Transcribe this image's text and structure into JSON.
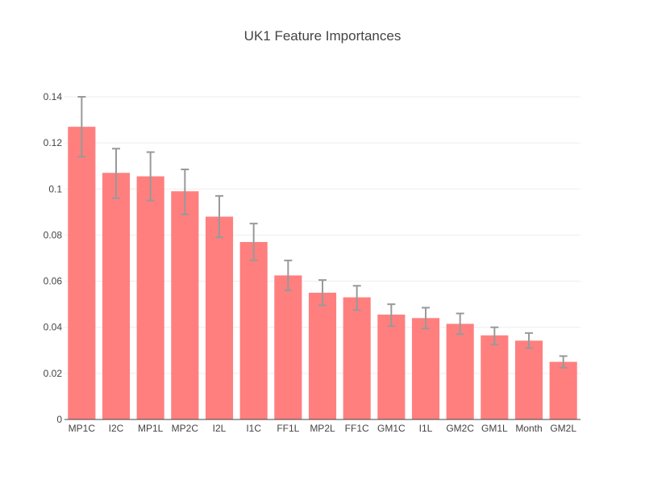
{
  "chart_data": {
    "type": "bar",
    "title": "UK1 Feature Importances",
    "xlabel": "",
    "ylabel": "",
    "categories": [
      "MP1C",
      "I2C",
      "MP1L",
      "MP2C",
      "I2L",
      "I1C",
      "FF1L",
      "MP2L",
      "FF1C",
      "GM1C",
      "I1L",
      "GM2C",
      "GM1L",
      "Month",
      "GM2L"
    ],
    "values": [
      0.127,
      0.107,
      0.1055,
      0.099,
      0.088,
      0.077,
      0.0625,
      0.055,
      0.053,
      0.0455,
      0.044,
      0.0415,
      0.0365,
      0.0342,
      0.025
    ],
    "error_low": [
      0.114,
      0.096,
      0.095,
      0.089,
      0.079,
      0.069,
      0.056,
      0.0495,
      0.0475,
      0.0405,
      0.0395,
      0.037,
      0.0325,
      0.031,
      0.0225
    ],
    "error_high": [
      0.14,
      0.1175,
      0.116,
      0.1085,
      0.097,
      0.085,
      0.069,
      0.0605,
      0.058,
      0.05,
      0.0485,
      0.046,
      0.04,
      0.0375,
      0.0275
    ],
    "ylim": [
      0,
      0.14
    ],
    "yticks": [
      "0",
      "0.02",
      "0.04",
      "0.06",
      "0.08",
      "0.1",
      "0.12",
      "0.14"
    ],
    "grid": true,
    "legend": "none",
    "colors": {
      "bar": "#ff7f7f",
      "error": "#999999",
      "grid": "#eeeeee",
      "axis": "#444444",
      "text": "#444444"
    }
  }
}
